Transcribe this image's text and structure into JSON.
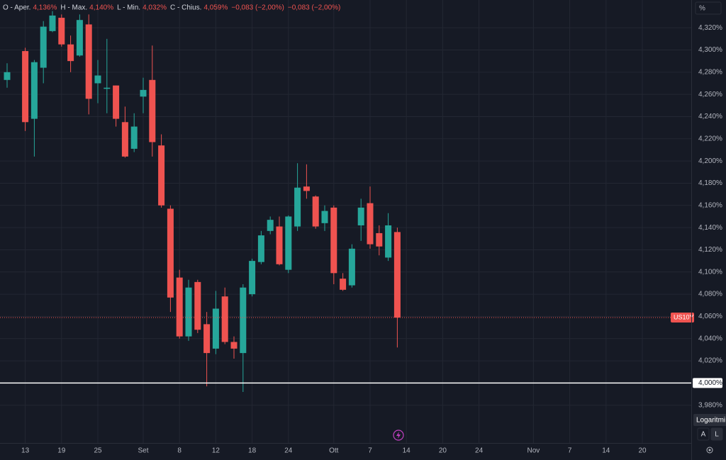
{
  "chart_data": {
    "type": "candlestick",
    "legend_items": [
      {
        "label": "O - Aper.",
        "value": "4,136%"
      },
      {
        "label": "H - Max.",
        "value": "4,140%"
      },
      {
        "label": "L - Min.",
        "value": "4,032%"
      },
      {
        "label": "C - Chius.",
        "value": "4,059%"
      }
    ],
    "change": "−0,083 (−2,00%)",
    "change_2": "−0,083 (−2,00%)",
    "unit_button": "%",
    "up_color": "#26a69a",
    "down_color": "#ef5350",
    "grid": true,
    "categories": [
      null,
      null,
      "13",
      null,
      null,
      null,
      "19",
      null,
      null,
      null,
      "25",
      null,
      null,
      null,
      null,
      "Set",
      null,
      null,
      null,
      "8",
      null,
      null,
      null,
      "12",
      null,
      null,
      null,
      "18",
      null,
      null,
      null,
      "24",
      null,
      null,
      null,
      null,
      "Ott",
      null,
      null,
      null,
      "7",
      null,
      null,
      null,
      "14",
      null,
      null,
      null,
      "20",
      null,
      null,
      null,
      "24",
      null,
      null,
      null,
      null,
      null,
      "Nov",
      null,
      null,
      null,
      "7",
      null,
      null,
      null,
      "14",
      null,
      null,
      null,
      "20",
      null,
      null,
      null,
      null,
      null
    ],
    "open": [
      4.273,
      null,
      4.299,
      4.238,
      4.284,
      4.317,
      4.329,
      4.305,
      4.295,
      4.323,
      4.27,
      4.265,
      4.268,
      4.235,
      4.211,
      4.258,
      4.273,
      4.214,
      4.157,
      4.095,
      4.042,
      4.091,
      4.053,
      4.031,
      4.078,
      4.037,
      4.027,
      4.08,
      4.109,
      4.137,
      4.141,
      4.102,
      4.141,
      4.177,
      4.168,
      4.144,
      4.158,
      4.094,
      4.088,
      4.142,
      4.162,
      4.135,
      4.113,
      4.136,
      null,
      null,
      null,
      null,
      null,
      null,
      null,
      null,
      null,
      null,
      null,
      null,
      null,
      null,
      null,
      null,
      null,
      null,
      null,
      null,
      null,
      null,
      null,
      null,
      null,
      null,
      null,
      null,
      null,
      null,
      null,
      null
    ],
    "high": [
      4.288,
      null,
      4.302,
      4.291,
      4.326,
      4.335,
      4.332,
      4.313,
      4.332,
      4.332,
      4.291,
      4.31,
      4.268,
      4.249,
      4.243,
      4.275,
      4.304,
      4.224,
      4.16,
      4.102,
      4.093,
      4.093,
      4.064,
      4.083,
      4.086,
      4.042,
      4.089,
      4.112,
      4.137,
      4.15,
      4.15,
      4.151,
      4.198,
      4.197,
      4.169,
      4.16,
      4.16,
      4.099,
      4.125,
      4.166,
      4.177,
      4.142,
      4.153,
      4.14,
      null,
      null,
      null,
      null,
      null,
      null,
      null,
      null,
      null,
      null,
      null,
      null,
      null,
      null,
      null,
      null,
      null,
      null,
      null,
      null,
      null,
      null,
      null,
      null,
      null,
      null,
      null,
      null,
      null,
      null,
      null,
      null
    ],
    "low": [
      4.266,
      null,
      4.227,
      4.204,
      4.27,
      4.316,
      4.303,
      4.28,
      4.294,
      4.242,
      4.252,
      4.243,
      4.231,
      4.203,
      4.208,
      4.243,
      4.204,
      4.158,
      4.064,
      4.04,
      4.038,
      4.045,
      3.997,
      4.026,
      4.035,
      4.022,
      3.992,
      4.078,
      4.107,
      4.134,
      4.106,
      4.099,
      4.137,
      4.166,
      4.139,
      4.137,
      4.089,
      4.083,
      4.086,
      4.128,
      4.121,
      4.115,
      4.11,
      4.032,
      null,
      null,
      null,
      null,
      null,
      null,
      null,
      null,
      null,
      null,
      null,
      null,
      null,
      null,
      null,
      null,
      null,
      null,
      null,
      null,
      null,
      null,
      null,
      null,
      null,
      null,
      null,
      null,
      null,
      null,
      null,
      null
    ],
    "close": [
      4.28,
      null,
      4.235,
      4.289,
      4.321,
      4.331,
      4.305,
      4.29,
      4.327,
      4.256,
      4.277,
      4.266,
      4.238,
      4.204,
      4.231,
      4.264,
      4.217,
      4.16,
      4.077,
      4.042,
      4.086,
      4.048,
      4.027,
      4.067,
      4.037,
      4.031,
      4.086,
      4.11,
      4.133,
      4.147,
      4.107,
      4.15,
      4.176,
      4.173,
      4.141,
      4.155,
      4.099,
      4.084,
      4.121,
      4.158,
      4.125,
      4.123,
      4.142,
      4.059,
      null,
      null,
      null,
      null,
      null,
      null,
      null,
      null,
      null,
      null,
      null,
      null,
      null,
      null,
      null,
      null,
      null,
      null,
      null,
      null,
      null,
      null,
      null,
      null,
      null,
      null,
      null,
      null,
      null,
      null,
      null,
      null
    ],
    "ylim": [
      3.946,
      4.345
    ],
    "yticks": [
      {
        "value": 3.98,
        "label": "3,980%"
      },
      {
        "value": 4.02,
        "label": "4,020%"
      },
      {
        "value": 4.04,
        "label": "4,040%"
      },
      {
        "value": 4.06,
        "label": "4,060%"
      },
      {
        "value": 4.08,
        "label": "4,080%"
      },
      {
        "value": 4.1,
        "label": "4,100%"
      },
      {
        "value": 4.12,
        "label": "4,120%"
      },
      {
        "value": 4.14,
        "label": "4,140%"
      },
      {
        "value": 4.16,
        "label": "4,160%"
      },
      {
        "value": 4.18,
        "label": "4,180%"
      },
      {
        "value": 4.2,
        "label": "4,200%"
      },
      {
        "value": 4.22,
        "label": "4,220%"
      },
      {
        "value": 4.24,
        "label": "4,240%"
      },
      {
        "value": 4.26,
        "label": "4,260%"
      },
      {
        "value": 4.28,
        "label": "4,280%"
      },
      {
        "value": 4.3,
        "label": "4,300%"
      },
      {
        "value": 4.32,
        "label": "4,320%"
      }
    ],
    "reference_line": {
      "value": 4.0,
      "label": "4,000%"
    },
    "price_line": {
      "value": 4.059,
      "label": "US10Y"
    },
    "scale_tooltip": "Logaritmi",
    "scale_buttons": [
      "A",
      "L"
    ]
  }
}
